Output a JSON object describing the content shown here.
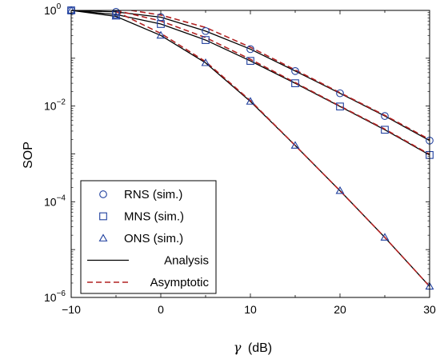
{
  "chart_data": {
    "type": "line",
    "title": "",
    "xlabel_symbol": "γ",
    "xlabel_unit": "(dB)",
    "ylabel": "SOP",
    "xlim": [
      -10,
      30
    ],
    "ylim": [
      1e-06,
      1
    ],
    "yscale": "log",
    "grid": false,
    "legend_placement": "lower-left",
    "xticks": [
      "−10",
      "0",
      "10",
      "20",
      "30"
    ],
    "yticks_exponents": [
      "0",
      "−2",
      "−4",
      "−6"
    ],
    "series": [
      {
        "name": "RNS (sim.)",
        "kind": "marker",
        "marker": "circle",
        "color": "#1f3f9e",
        "x": [
          -10,
          -5,
          0,
          5,
          10,
          15,
          20,
          25,
          30
        ],
        "y": [
          1.0,
          0.93,
          0.72,
          0.37,
          0.155,
          0.054,
          0.0185,
          0.0062,
          0.0019
        ]
      },
      {
        "name": "MNS (sim.)",
        "kind": "marker",
        "marker": "square",
        "color": "#1f3f9e",
        "x": [
          -10,
          -5,
          0,
          5,
          10,
          15,
          20,
          25,
          30
        ],
        "y": [
          1.0,
          0.82,
          0.52,
          0.24,
          0.088,
          0.03,
          0.0098,
          0.0032,
          0.00095
        ]
      },
      {
        "name": "ONS (sim.)",
        "kind": "marker",
        "marker": "triangle",
        "color": "#1f3f9e",
        "x": [
          -10,
          -5,
          0,
          5,
          10,
          15,
          20,
          25,
          30
        ],
        "y": [
          1.0,
          0.75,
          0.3,
          0.08,
          0.0125,
          0.0015,
          0.00017,
          1.8e-05,
          1.7e-06
        ]
      },
      {
        "name": "Analysis",
        "kind": "line",
        "color": "#000000",
        "dash": "",
        "curves": [
          {
            "x": [
              -10,
              -5,
              0,
              5,
              10,
              15,
              20,
              25,
              30
            ],
            "y": [
              1.0,
              0.93,
              0.72,
              0.37,
              0.155,
              0.054,
              0.0185,
              0.0062,
              0.0019
            ]
          },
          {
            "x": [
              -10,
              -5,
              0,
              5,
              10,
              15,
              20,
              25,
              30
            ],
            "y": [
              1.0,
              0.82,
              0.52,
              0.24,
              0.088,
              0.03,
              0.0098,
              0.0032,
              0.00095
            ]
          },
          {
            "x": [
              -10,
              -5,
              0,
              5,
              10,
              15,
              20,
              25,
              30
            ],
            "y": [
              1.0,
              0.75,
              0.3,
              0.08,
              0.0125,
              0.0015,
              0.00017,
              1.8e-05,
              1.7e-06
            ]
          }
        ]
      },
      {
        "name": "Asymptotic",
        "kind": "line",
        "color": "#b22222",
        "dash": "7,4",
        "curves": [
          {
            "x": [
              -3.3,
              0,
              5,
              10,
              15,
              20,
              25,
              30
            ],
            "y": [
              1.0,
              0.8,
              0.44,
              0.17,
              0.057,
              0.019,
              0.0064,
              0.002
            ]
          },
          {
            "x": [
              -5,
              0,
              5,
              10,
              15,
              20,
              25,
              30
            ],
            "y": [
              1.0,
              0.6,
              0.27,
              0.095,
              0.031,
              0.01,
              0.0033,
              0.00098
            ]
          },
          {
            "x": [
              -5,
              0,
              5,
              10,
              15,
              20,
              25,
              30
            ],
            "y": [
              0.95,
              0.33,
              0.085,
              0.013,
              0.0015,
              0.00017,
              1.8e-05,
              1.7e-06
            ]
          }
        ]
      }
    ]
  }
}
